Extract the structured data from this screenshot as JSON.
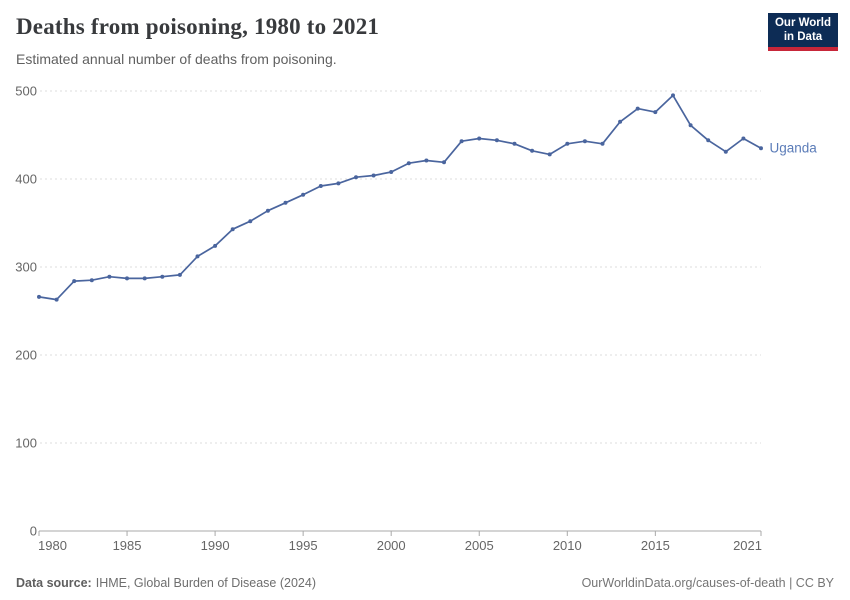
{
  "colors": {
    "owid_navy": "#0d2c55",
    "owid_red": "#c72639",
    "line": "#4a659e",
    "entity_label": "#5b7cb8",
    "grid": "#dcdcdc",
    "axis_line": "#a9a9a9",
    "tick_text": "#666666"
  },
  "logo": {
    "line1": "Our World",
    "line2": "in Data"
  },
  "footer": {
    "source_label": "Data source:",
    "source_text": "IHME, Global Burden of Disease (2024)",
    "citation": "OurWorldinData.org/causes-of-death | CC BY"
  },
  "chart_data": {
    "type": "line",
    "title": "Deaths from poisoning, 1980 to 2021",
    "subtitle": "Estimated annual number of deaths from poisoning.",
    "xlabel": "",
    "ylabel": "",
    "xlim": [
      1980,
      2021
    ],
    "ylim": [
      0,
      500
    ],
    "grid": "horizontal-dashed",
    "legend_position": "end-of-line-label",
    "xticks": [
      1980,
      1985,
      1990,
      1995,
      2000,
      2005,
      2010,
      2015,
      2021
    ],
    "yticks": [
      0,
      100,
      200,
      300,
      400,
      500
    ],
    "series": [
      {
        "name": "Uganda",
        "x": [
          1980,
          1981,
          1982,
          1983,
          1984,
          1985,
          1986,
          1987,
          1988,
          1989,
          1990,
          1991,
          1992,
          1993,
          1994,
          1995,
          1996,
          1997,
          1998,
          1999,
          2000,
          2001,
          2002,
          2003,
          2004,
          2005,
          2006,
          2007,
          2008,
          2009,
          2010,
          2011,
          2012,
          2013,
          2014,
          2015,
          2016,
          2017,
          2018,
          2019,
          2020,
          2021
        ],
        "values": [
          266,
          263,
          284,
          285,
          289,
          287,
          287,
          289,
          291,
          312,
          324,
          343,
          352,
          364,
          373,
          382,
          392,
          395,
          402,
          404,
          408,
          418,
          421,
          419,
          443,
          446,
          444,
          440,
          432,
          428,
          440,
          443,
          440,
          465,
          480,
          476,
          495,
          461,
          444,
          431,
          446,
          435
        ]
      }
    ]
  }
}
